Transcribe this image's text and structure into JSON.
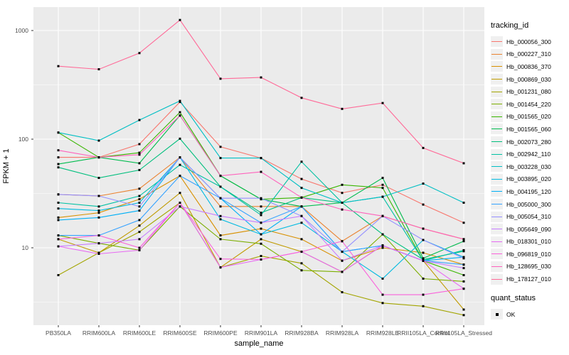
{
  "figure": {
    "ylabel": "FPKM + 1",
    "xlabel": "sample_name",
    "legend_title": "tracking_id",
    "quant_legend_title": "quant_status",
    "quant_legend_item": "OK"
  },
  "chart_data": {
    "type": "line",
    "title": "",
    "xlabel": "sample_name",
    "ylabel": "FPKM + 1",
    "log_y": true,
    "ylim": [
      1.9,
      1650
    ],
    "y_ticks": [
      1000,
      100,
      10
    ],
    "y_minor_gridlines": [
      316.2,
      31.62,
      3.162
    ],
    "grid": true,
    "legend_position": "right",
    "panel_background": "#EBEBEB",
    "gridline_color": "#FFFFFF",
    "point_marker": "black-square",
    "categories": [
      "PB350LA",
      "RRIM600LA",
      "RRIM600LE",
      "RRIM600SE",
      "RRIM600PE",
      "RRIM901LA",
      "RRIM928BA",
      "RRIM928LA",
      "RRIM928LE",
      "RRII105LA_Control",
      "RRII105LA_Stressed"
    ],
    "series": [
      {
        "name": "Hb_000056_300",
        "color": "#F8766D",
        "values": [
          68,
          68,
          90,
          220,
          85,
          67,
          43,
          32,
          38,
          25,
          17
        ]
      },
      {
        "name": "Hb_000227_310",
        "color": "#EA8331",
        "values": [
          31,
          30,
          35,
          68,
          24,
          24,
          24,
          11.5,
          19.6,
          15,
          12
        ]
      },
      {
        "name": "Hb_000836_370",
        "color": "#D89000",
        "values": [
          19,
          21,
          28,
          46,
          13,
          15,
          12,
          7.6,
          10,
          9,
          7
        ]
      },
      {
        "name": "Hb_000869_030",
        "color": "#C09B00",
        "values": [
          12,
          9,
          16,
          32,
          6.6,
          12,
          9.2,
          6,
          10.5,
          7.6,
          2.7
        ]
      },
      {
        "name": "Hb_001231_080",
        "color": "#A3A500",
        "values": [
          5.6,
          9,
          14,
          26,
          6.6,
          8.4,
          7.2,
          3.9,
          3.1,
          2.9,
          2.4
        ]
      },
      {
        "name": "Hb_001454_220",
        "color": "#7CAE00",
        "values": [
          13,
          11,
          9.5,
          24,
          12,
          10.9,
          6.2,
          6,
          13.3,
          5.2,
          4.9
        ]
      },
      {
        "name": "Hb_001565_020",
        "color": "#39B600",
        "values": [
          115,
          68,
          75,
          177,
          46,
          28,
          29,
          38,
          35.6,
          7.6,
          5.6
        ]
      },
      {
        "name": "Hb_001565_060",
        "color": "#00BB4E",
        "values": [
          59,
          68,
          60,
          165,
          46,
          28,
          24,
          26,
          44,
          8,
          11.5
        ]
      },
      {
        "name": "Hb_002073_280",
        "color": "#00BF7D",
        "values": [
          55,
          44,
          52,
          101,
          36.5,
          21,
          29,
          26,
          13.3,
          7.8,
          9.3
        ]
      },
      {
        "name": "Hb_002942_110",
        "color": "#00C1A3",
        "values": [
          26,
          24,
          30,
          58,
          36.5,
          20,
          62,
          26,
          29.5,
          7.6,
          9.5
        ]
      },
      {
        "name": "Hb_003228_030",
        "color": "#00BFC4",
        "values": [
          115,
          97,
          150,
          225,
          67,
          67,
          35.6,
          26,
          29.5,
          39,
          26
        ]
      },
      {
        "name": "Hb_003895_020",
        "color": "#00BAE0",
        "values": [
          23,
          22,
          26,
          68,
          18.3,
          13.3,
          17,
          9.2,
          5.2,
          11.8,
          8.2
        ]
      },
      {
        "name": "Hb_004195_120",
        "color": "#00B0F6",
        "values": [
          18,
          19,
          22,
          68,
          28.6,
          13.3,
          24,
          9.2,
          10.5,
          7.6,
          8.2
        ]
      },
      {
        "name": "Hb_005000_300",
        "color": "#35A2FF",
        "values": [
          13,
          13,
          18,
          46,
          28.6,
          17,
          24,
          9.2,
          10.5,
          7.6,
          7
        ]
      },
      {
        "name": "Hb_005054_310",
        "color": "#9590FF",
        "values": [
          31,
          30,
          24,
          68,
          28.6,
          28.6,
          19.6,
          9.2,
          19.6,
          11.8,
          8
        ]
      },
      {
        "name": "Hb_005649_090",
        "color": "#C77CFF",
        "values": [
          10.3,
          11,
          12,
          24,
          19.6,
          17,
          19.6,
          7.6,
          10.5,
          7.6,
          6.5
        ]
      },
      {
        "name": "Hb_018301_010",
        "color": "#E76BF3",
        "values": [
          10.3,
          8.8,
          9.5,
          26,
          6.6,
          7.8,
          9.2,
          6,
          10.5,
          7.6,
          4.2
        ]
      },
      {
        "name": "Hb_096819_010",
        "color": "#FA62DB",
        "values": [
          12,
          13,
          10,
          26,
          7.9,
          7.8,
          9.2,
          11.5,
          3.7,
          3.7,
          4.2
        ]
      },
      {
        "name": "Hb_128695_030",
        "color": "#FF62BC",
        "values": [
          79,
          68,
          72,
          165,
          46,
          50,
          29,
          22.5,
          19.6,
          15,
          12
        ]
      },
      {
        "name": "Hb_178127_010",
        "color": "#FF6A98",
        "values": [
          470,
          440,
          620,
          1250,
          360,
          370,
          240,
          190,
          215,
          83,
          60
        ]
      }
    ]
  }
}
